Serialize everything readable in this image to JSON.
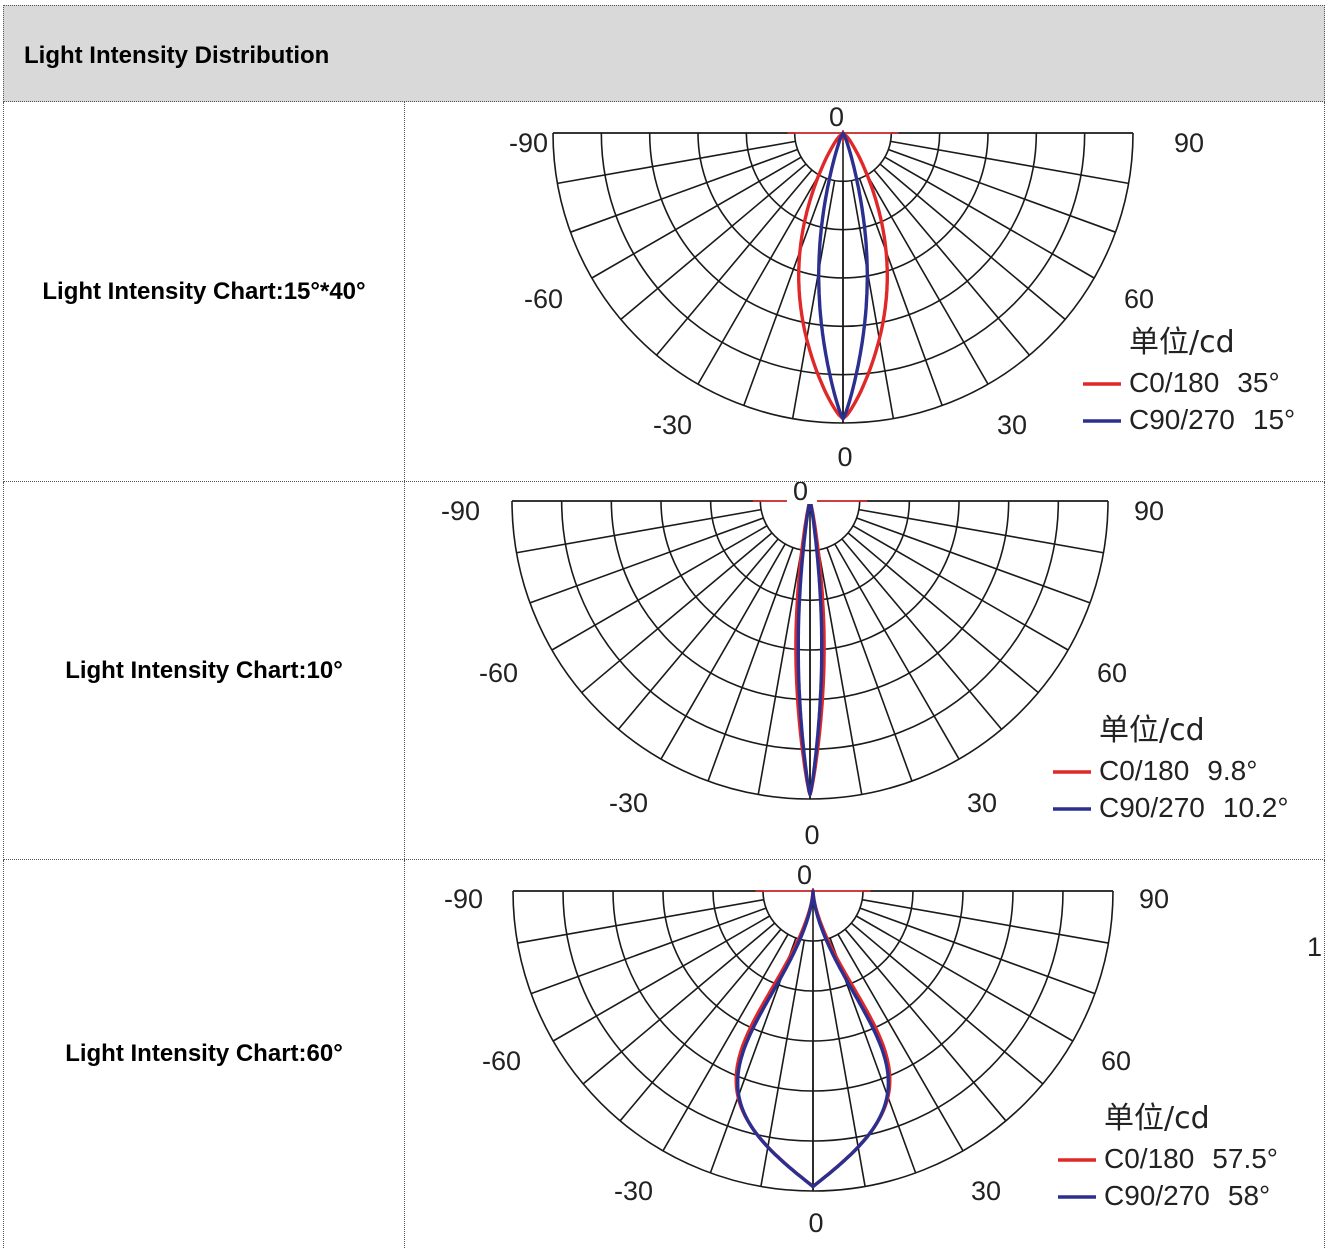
{
  "header": {
    "title": "Light Intensity Distribution"
  },
  "colors": {
    "c0_180": "#e02828",
    "c90_270": "#2b2f8f",
    "crosshair": "#e02828",
    "header_bg": "#d9d9d9"
  },
  "rows": [
    {
      "label": "Light Intensity Chart:15°*40°"
    },
    {
      "label": "Light Intensity Chart:10°"
    },
    {
      "label": "Light Intensity Chart:60°"
    }
  ],
  "chart_data": [
    {
      "type": "polar",
      "angle_labels": [
        "-90",
        "-60",
        "-30",
        "0",
        "30",
        "60",
        "90"
      ],
      "top_label": "0",
      "unit": "单位/cd",
      "series": [
        {
          "name": "C0/180",
          "beam_angle": "35°",
          "color": "#e02828"
        },
        {
          "name": "C90/270",
          "beam_angle": "15°",
          "color": "#2b2f8f"
        }
      ]
    },
    {
      "type": "polar",
      "angle_labels": [
        "-90",
        "-60",
        "-30",
        "0",
        "30",
        "60",
        "90"
      ],
      "top_label": "0",
      "unit": "单位/cd",
      "series": [
        {
          "name": "C0/180",
          "beam_angle": "9.8°",
          "color": "#e02828"
        },
        {
          "name": "C90/270",
          "beam_angle": "10.2°",
          "color": "#2b2f8f"
        }
      ]
    },
    {
      "type": "polar",
      "angle_labels": [
        "-90",
        "-60",
        "-30",
        "0",
        "30",
        "60",
        "90"
      ],
      "top_label": "0",
      "unit": "单位/cd",
      "side_mark": "1",
      "series": [
        {
          "name": "C0/180",
          "beam_angle": "57.5°",
          "color": "#e02828"
        },
        {
          "name": "C90/270",
          "beam_angle": "58°",
          "color": "#2b2f8f"
        }
      ]
    }
  ]
}
